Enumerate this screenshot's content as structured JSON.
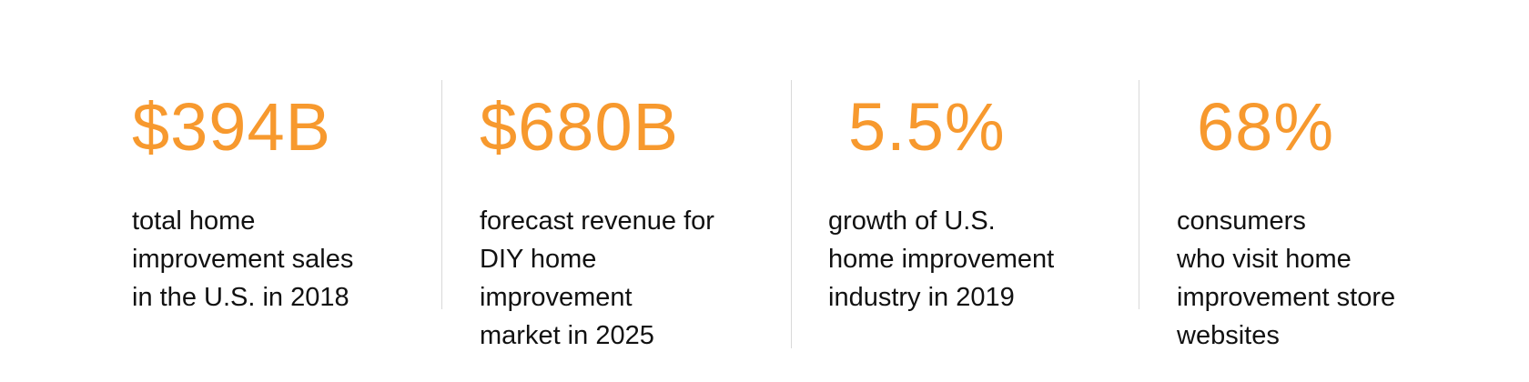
{
  "accent_color": "#f7992e",
  "stats": [
    {
      "value": "$394B",
      "description": "total home\nimprovement sales\nin the U.S. in 2018"
    },
    {
      "value": "$680B",
      "description": "forecast revenue for\nDIY home\nimprovement\nmarket in 2025"
    },
    {
      "value": "5.5%",
      "description": "growth of U.S.\nhome improvement\nindustry in 2019"
    },
    {
      "value": "68%",
      "description": "consumers\nwho visit home\nimprovement store\nwebsites"
    }
  ]
}
